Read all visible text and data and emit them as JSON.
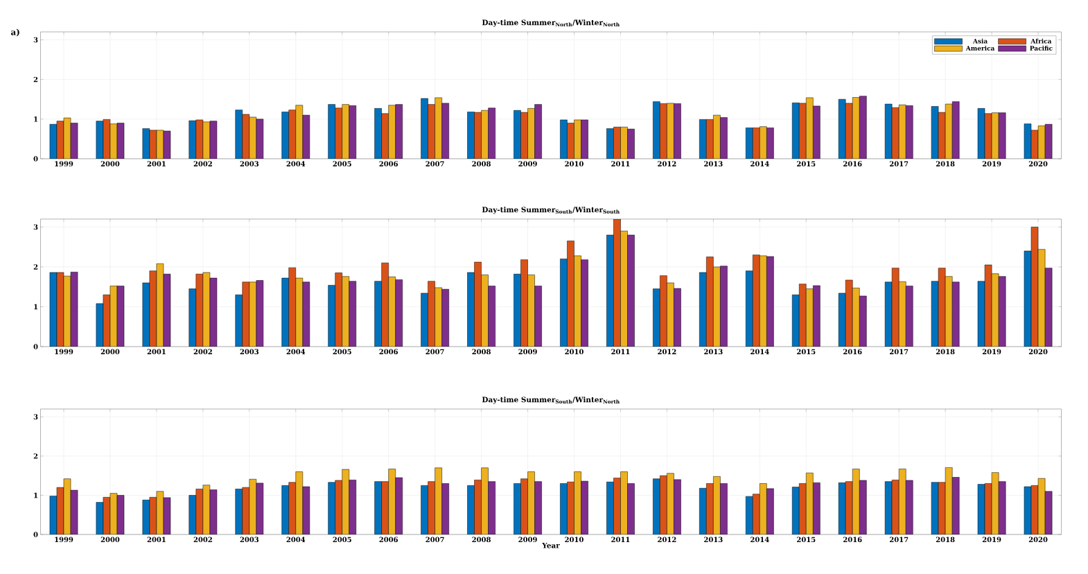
{
  "chart_data": [
    {
      "type": "bar",
      "title": "Day-time Summer$_{North}$/Winter$_{North}$",
      "annotations": [
        "a)"
      ],
      "categories": [
        "1999",
        "2000",
        "2001",
        "2002",
        "2003",
        "2004",
        "2005",
        "2006",
        "2007",
        "2008",
        "2009",
        "2010",
        "2011",
        "2012",
        "2013",
        "2014",
        "2015",
        "2016",
        "2017",
        "2018",
        "2019",
        "2020"
      ],
      "series": [
        {
          "name": "Asia",
          "color": "#0072bd",
          "values": [
            0.87,
            0.95,
            0.76,
            0.96,
            1.23,
            1.18,
            1.37,
            1.27,
            1.52,
            1.18,
            1.22,
            0.98,
            0.76,
            1.44,
            0.99,
            0.78,
            1.41,
            1.5,
            1.38,
            1.32,
            1.27,
            0.88
          ]
        },
        {
          "name": "Africa",
          "color": "#d95319",
          "values": [
            0.95,
            0.99,
            0.72,
            0.98,
            1.12,
            1.23,
            1.28,
            1.14,
            1.37,
            1.17,
            1.17,
            0.9,
            0.8,
            1.39,
            0.99,
            0.78,
            1.4,
            1.4,
            1.29,
            1.17,
            1.14,
            0.72
          ]
        },
        {
          "name": "America",
          "color": "#edb120",
          "values": [
            1.03,
            0.88,
            0.72,
            0.93,
            1.05,
            1.35,
            1.37,
            1.35,
            1.54,
            1.22,
            1.27,
            0.98,
            0.8,
            1.4,
            1.1,
            0.81,
            1.54,
            1.55,
            1.36,
            1.38,
            1.16,
            0.83
          ]
        },
        {
          "name": "Pacific",
          "color": "#7e2f8e",
          "values": [
            0.9,
            0.9,
            0.7,
            0.95,
            1.0,
            1.1,
            1.34,
            1.37,
            1.4,
            1.28,
            1.37,
            0.98,
            0.75,
            1.39,
            1.04,
            0.78,
            1.33,
            1.58,
            1.34,
            1.44,
            1.16,
            0.87
          ]
        }
      ],
      "ylim": [
        0,
        3.2
      ],
      "yticks": [
        0,
        1,
        2,
        3
      ],
      "grid": true,
      "legend": "top right"
    },
    {
      "type": "bar",
      "title": "Day-time Summer$_{South}$/Winter$_{South}$",
      "categories": [
        "1999",
        "2000",
        "2001",
        "2002",
        "2003",
        "2004",
        "2005",
        "2006",
        "2007",
        "2008",
        "2009",
        "2010",
        "2011",
        "2012",
        "2013",
        "2014",
        "2015",
        "2016",
        "2017",
        "2018",
        "2019",
        "2020"
      ],
      "series": [
        {
          "color": "#0072bd",
          "values": [
            1.86,
            1.08,
            1.6,
            1.45,
            1.3,
            1.72,
            1.54,
            1.64,
            1.34,
            1.86,
            1.82,
            2.2,
            2.8,
            1.45,
            1.86,
            1.9,
            1.3,
            1.34,
            1.62,
            1.64,
            1.64,
            2.4
          ]
        },
        {
          "color": "#d95319",
          "values": [
            1.86,
            1.3,
            1.9,
            1.82,
            1.62,
            1.98,
            1.85,
            2.1,
            1.64,
            2.12,
            2.18,
            2.65,
            3.2,
            1.78,
            2.25,
            2.3,
            1.57,
            1.67,
            1.97,
            1.97,
            2.05,
            3.0
          ]
        },
        {
          "color": "#edb120",
          "values": [
            1.77,
            1.52,
            2.08,
            1.86,
            1.62,
            1.72,
            1.76,
            1.75,
            1.48,
            1.8,
            1.8,
            2.28,
            2.9,
            1.6,
            2.0,
            2.28,
            1.45,
            1.47,
            1.63,
            1.76,
            1.83,
            2.44
          ]
        },
        {
          "color": "#7e2f8e",
          "values": [
            1.87,
            1.52,
            1.82,
            1.72,
            1.66,
            1.62,
            1.64,
            1.68,
            1.44,
            1.52,
            1.52,
            2.18,
            2.8,
            1.46,
            2.02,
            2.26,
            1.53,
            1.27,
            1.52,
            1.62,
            1.76,
            1.97
          ]
        }
      ],
      "ylim": [
        0,
        3.2
      ],
      "yticks": [
        0,
        1,
        2,
        3
      ],
      "grid": true
    },
    {
      "type": "bar",
      "title": "Day-time Summer$_{South}$/Winter$_{North}$",
      "xlabel": "Year",
      "categories": [
        "1999",
        "2000",
        "2001",
        "2002",
        "2003",
        "2004",
        "2005",
        "2006",
        "2007",
        "2008",
        "2009",
        "2010",
        "2011",
        "2012",
        "2013",
        "2014",
        "2015",
        "2016",
        "2017",
        "2018",
        "2019",
        "2020"
      ],
      "series": [
        {
          "color": "#0072bd",
          "values": [
            0.98,
            0.82,
            0.88,
            1.0,
            1.16,
            1.25,
            1.33,
            1.35,
            1.25,
            1.25,
            1.3,
            1.3,
            1.34,
            1.42,
            1.18,
            0.97,
            1.21,
            1.32,
            1.35,
            1.33,
            1.28,
            1.22
          ]
        },
        {
          "color": "#d95319",
          "values": [
            1.2,
            0.95,
            0.95,
            1.16,
            1.2,
            1.33,
            1.38,
            1.35,
            1.35,
            1.39,
            1.42,
            1.34,
            1.44,
            1.5,
            1.3,
            1.03,
            1.3,
            1.35,
            1.39,
            1.33,
            1.3,
            1.25
          ]
        },
        {
          "color": "#edb120",
          "values": [
            1.42,
            1.05,
            1.1,
            1.26,
            1.41,
            1.6,
            1.66,
            1.67,
            1.7,
            1.7,
            1.6,
            1.6,
            1.6,
            1.56,
            1.48,
            1.3,
            1.57,
            1.67,
            1.67,
            1.71,
            1.58,
            1.43
          ]
        },
        {
          "color": "#7e2f8e",
          "values": [
            1.13,
            1.0,
            0.94,
            1.14,
            1.31,
            1.22,
            1.39,
            1.45,
            1.3,
            1.35,
            1.35,
            1.36,
            1.3,
            1.4,
            1.3,
            1.17,
            1.32,
            1.38,
            1.38,
            1.46,
            1.35,
            1.1
          ]
        }
      ],
      "ylim": [
        0,
        3.2
      ],
      "yticks": [
        0,
        1,
        2,
        3
      ],
      "grid": true
    }
  ]
}
